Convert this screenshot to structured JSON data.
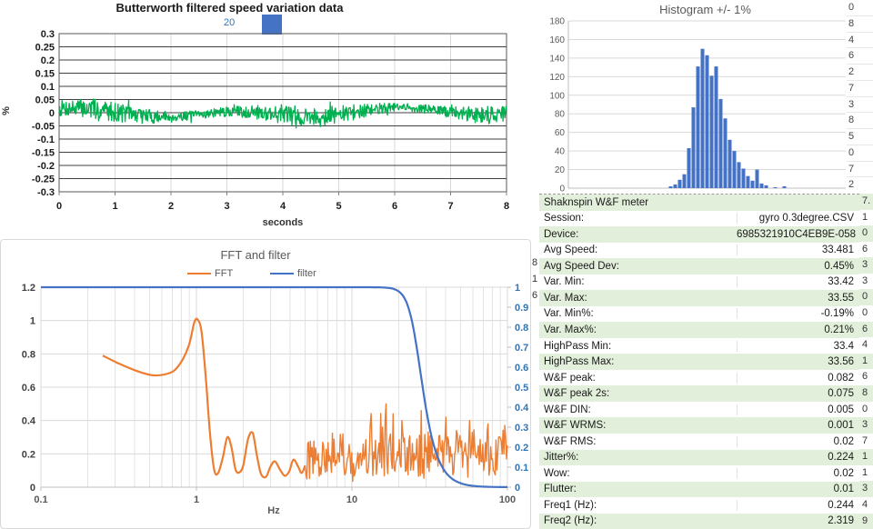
{
  "chart_data": [
    {
      "id": "speed_variation",
      "type": "line",
      "title": "Butterworth filtered speed variation data",
      "legend_label": "20",
      "xlabel": "seconds",
      "ylabel": "%",
      "x_ticks": [
        0,
        1,
        2,
        3,
        4,
        5,
        6,
        7,
        8
      ],
      "y_ticks": [
        0.3,
        0.25,
        0.2,
        0.15,
        0.1,
        0.05,
        0,
        -0.05,
        -0.1,
        -0.15,
        -0.2,
        -0.25,
        -0.3
      ],
      "xlim": [
        0,
        8
      ],
      "ylim": [
        -0.3,
        0.3
      ],
      "line_color": "#00B050",
      "description": "noisy speed-variation signal hovering around 0, excursions roughly -0.07 to +0.065 %",
      "noise": {
        "seed": 7,
        "n": 760,
        "amp_base": 0.02,
        "amp_mod": 0.008,
        "clamp": 0.068
      }
    },
    {
      "id": "histogram",
      "type": "bar",
      "title": "Histogram +/- 1%",
      "y_ticks": [
        180,
        160,
        140,
        120,
        100,
        80,
        60,
        40,
        20,
        0
      ],
      "ylim": [
        0,
        180
      ],
      "bar_color": "#4472C4",
      "n_bins": 61,
      "counts": [
        0,
        0,
        0,
        0,
        0,
        0,
        0,
        0,
        0,
        0,
        0,
        0,
        0,
        0,
        0,
        0,
        0,
        0,
        0,
        0,
        0,
        0,
        2,
        4,
        9,
        15,
        43,
        87,
        131,
        150,
        143,
        121,
        131,
        96,
        75,
        52,
        40,
        28,
        21,
        13,
        8,
        20,
        5,
        3,
        0,
        1,
        0,
        2,
        0,
        0,
        0,
        0,
        0,
        0,
        0,
        0,
        0,
        0,
        0,
        0,
        0
      ]
    },
    {
      "id": "fft_and_filter",
      "type": "line",
      "title": "FFT and filter",
      "xlabel": "Hz",
      "x_scale": "log",
      "x_ticks": [
        0.1,
        1,
        10,
        100
      ],
      "left_ticks": [
        1.2,
        1,
        0.8,
        0.6,
        0.4,
        0.2,
        0
      ],
      "right_ticks": [
        1,
        0.9,
        0.8,
        0.7,
        0.6,
        0.5,
        0.4,
        0.3,
        0.2,
        0.1,
        0
      ],
      "left_ylim": [
        0,
        1.2
      ],
      "right_ylim": [
        0,
        1
      ],
      "series": [
        {
          "name": "FFT",
          "color": "#ED7D31",
          "axis": "left",
          "points_low": [
            [
              0.25,
              0.79
            ],
            [
              0.32,
              0.74
            ],
            [
              0.42,
              0.695
            ],
            [
              0.52,
              0.672
            ],
            [
              0.62,
              0.676
            ],
            [
              0.72,
              0.7
            ],
            [
              0.82,
              0.77
            ],
            [
              0.9,
              0.86
            ],
            [
              0.97,
              0.99
            ],
            [
              1.02,
              1.005
            ],
            [
              1.08,
              0.93
            ],
            [
              1.15,
              0.65
            ],
            [
              1.22,
              0.33
            ],
            [
              1.3,
              0.105
            ],
            [
              1.38,
              0.085
            ],
            [
              1.48,
              0.18
            ],
            [
              1.58,
              0.3
            ],
            [
              1.68,
              0.24
            ],
            [
              1.78,
              0.11
            ],
            [
              1.88,
              0.088
            ],
            [
              2.0,
              0.13
            ],
            [
              2.15,
              0.29
            ],
            [
              2.3,
              0.325
            ],
            [
              2.45,
              0.19
            ],
            [
              2.6,
              0.08
            ],
            [
              2.8,
              0.062
            ],
            [
              3.0,
              0.125
            ],
            [
              3.2,
              0.155
            ],
            [
              3.45,
              0.105
            ],
            [
              3.7,
              0.068
            ],
            [
              3.95,
              0.095
            ],
            [
              4.2,
              0.165
            ],
            [
              4.5,
              0.125
            ],
            [
              4.75,
              0.085
            ],
            [
              5.0,
              0.13
            ]
          ],
          "noise_high": {
            "seed": 42,
            "n": 230,
            "f_start": 5,
            "f_end": 100,
            "base_start": 0.17,
            "base_end": 0.22,
            "spread": 0.26,
            "min": 0.035,
            "max": 0.52,
            "spikes": [
              [
                16.5,
                0.5
              ],
              [
                18.5,
                0.44
              ],
              [
                21,
                0.4
              ],
              [
                28,
                0.46
              ],
              [
                40,
                0.42
              ],
              [
                57,
                0.4
              ],
              [
                75,
                0.38
              ]
            ]
          }
        },
        {
          "name": "filter",
          "color": "#4472C4",
          "axis": "right",
          "butterworth": {
            "cutoff_hz": 26,
            "order": 6
          }
        }
      ]
    }
  ],
  "table": {
    "zebra_color": "#E2EFDA",
    "rows": [
      {
        "label": "Shaknspin W&F meter",
        "value": "",
        "header": true
      },
      {
        "label": "Session:",
        "value": "gyro 0.3degree.CSV"
      },
      {
        "label": "Device:",
        "value": "6985321910C4EB9E-058"
      },
      {
        "label": "Avg Speed:",
        "value": "33.481"
      },
      {
        "label": "Avg Speed Dev:",
        "value": "0.45%"
      },
      {
        "label": "Var. Min:",
        "value": "33.42"
      },
      {
        "label": "Var. Max:",
        "value": "33.55"
      },
      {
        "label": "Var. Min%:",
        "value": "-0.19%"
      },
      {
        "label": "Var. Max%:",
        "value": "0.21%"
      },
      {
        "label": "HighPass Min:",
        "value": "33.4"
      },
      {
        "label": "HighPass Max:",
        "value": "33.56"
      },
      {
        "label": "W&F peak:",
        "value": "0.082"
      },
      {
        "label": "W&F peak 2s:",
        "value": "0.075"
      },
      {
        "label": "W&F DIN:",
        "value": "0.005"
      },
      {
        "label": "W&F WRMS:",
        "value": "0.001"
      },
      {
        "label": "W&F RMS:",
        "value": "0.02"
      },
      {
        "label": "Jitter%:",
        "value": "0.224"
      },
      {
        "label": "Wow:",
        "value": "0.02"
      },
      {
        "label": "Flutter:",
        "value": "0.01"
      },
      {
        "label": "Freq1 (Hz):",
        "value": "0.244"
      },
      {
        "label": "Freq2 (Hz):",
        "value": "2.319"
      }
    ]
  },
  "edge_columns": {
    "histogram_right": [
      "0",
      "8",
      "4",
      "6",
      "2",
      "7",
      "3",
      "8",
      "5",
      "0",
      "7",
      "2"
    ],
    "table_right": [
      "7.",
      "1",
      "0",
      "6",
      "3",
      "3",
      "0",
      "0",
      "6",
      "4",
      "1",
      "6",
      "8",
      "0",
      "3",
      "7",
      "1",
      "1",
      "3",
      "4",
      "9"
    ],
    "mid": [
      "8",
      "1",
      "6"
    ]
  },
  "colors": {
    "signal_green": "#00B050",
    "excel_blue": "#4472C4",
    "excel_orange": "#ED7D31",
    "secondary_axis_blue": "#2E75B6",
    "grid_light": "#D9D9D9",
    "axis_line": "#BFBFBF",
    "zebra_green": "#E2EFDA",
    "title_gray": "#595959"
  }
}
